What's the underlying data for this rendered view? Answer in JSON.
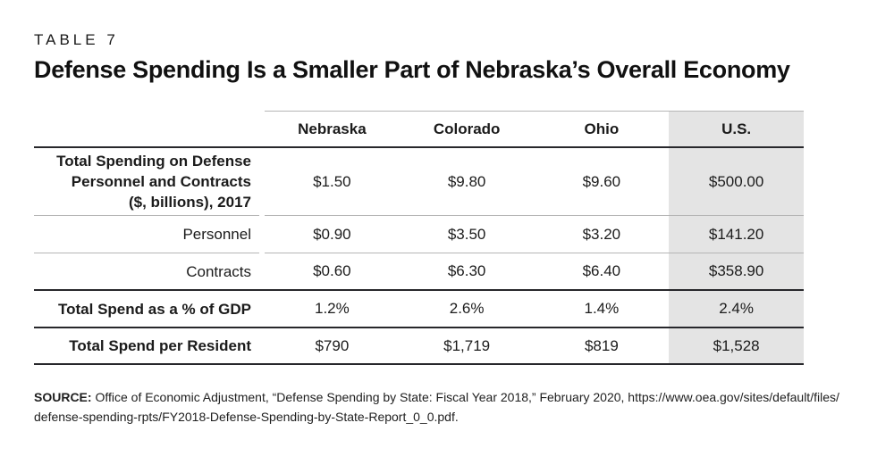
{
  "kicker": "TABLE 7",
  "title": "Defense Spending Is a Smaller Part of Nebraska’s Overall Economy",
  "table": {
    "columns": [
      "Nebraska",
      "Colorado",
      "Ohio",
      "U.S."
    ],
    "highlight_column": "U.S.",
    "highlight_color": "#e4e4e4",
    "rows": [
      {
        "label": [
          "Total Spending on Defense",
          "Personnel and Contracts",
          "($, billions), 2017"
        ],
        "values": [
          "$1.50",
          "$9.80",
          "$9.60",
          "$500.00"
        ]
      },
      {
        "label": "Personnel",
        "values": [
          "$0.90",
          "$3.50",
          "$3.20",
          "$141.20"
        ]
      },
      {
        "label": "Contracts",
        "values": [
          "$0.60",
          "$6.30",
          "$6.40",
          "$358.90"
        ]
      },
      {
        "label": "Total Spend as a % of GDP",
        "values": [
          "1.2%",
          "2.6%",
          "1.4%",
          "2.4%"
        ]
      },
      {
        "label": "Total Spend per Resident",
        "values": [
          "$790",
          "$1,719",
          "$819",
          "$1,528"
        ]
      }
    ]
  },
  "source": {
    "label": "SOURCE:",
    "line1": "Office of Economic Adjustment, “Defense Spending by State: Fiscal Year 2018,” February 2020, https://www.oea.gov/sites/default/files/",
    "line2": "defense-spending-rpts/FY2018-Defense-Spending-by-State-Report_0_0.pdf."
  }
}
